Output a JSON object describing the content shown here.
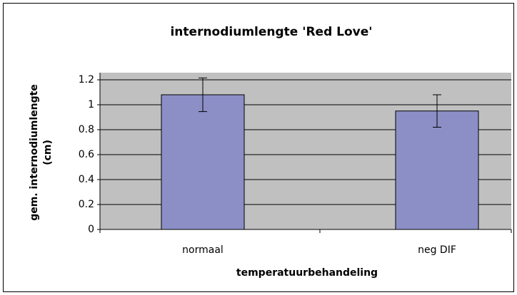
{
  "chart_data": {
    "type": "bar",
    "title": "internodiumlengte 'Red Love'",
    "x_label": "temperatuurbehandeling",
    "y_label": "gem. internodiumlengte (cm)",
    "categories": [
      "normaal",
      "neg DIF"
    ],
    "values": [
      1.08,
      0.95
    ],
    "errors": [
      0.135,
      0.13
    ],
    "color": "#8c8fc6",
    "ylim": [
      0,
      1.2
    ],
    "yticks": [
      0,
      0.2,
      0.4,
      0.6,
      0.8,
      1,
      1.2
    ],
    "grid": true
  }
}
